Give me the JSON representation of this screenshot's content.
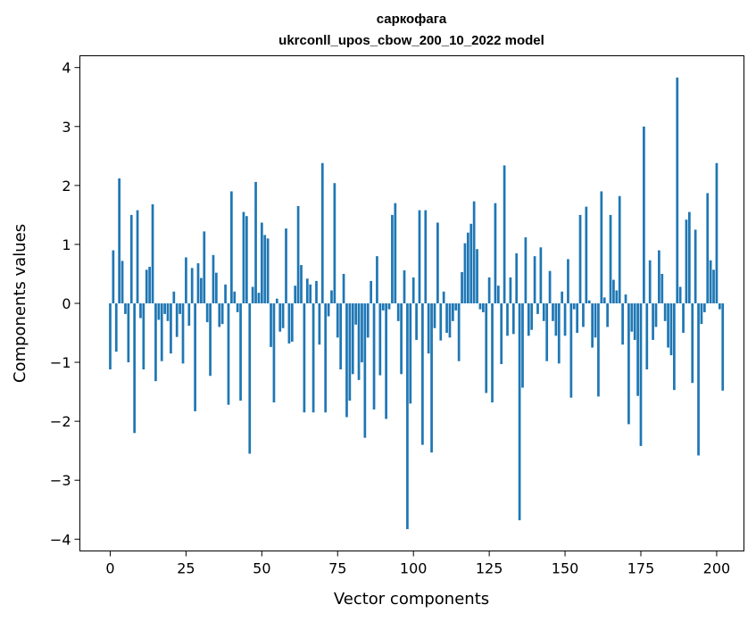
{
  "chart_data": {
    "type": "bar",
    "title_line1": "саркофага",
    "title_line2": "ukrconll_upos_cbow_200_10_2022 model",
    "xlabel": "Vector components",
    "ylabel": "Components values",
    "xlim": [
      -10,
      209
    ],
    "ylim": [
      -4.2,
      4.2
    ],
    "xticks": [
      0,
      25,
      50,
      75,
      100,
      125,
      150,
      175,
      200
    ],
    "yticks": [
      -4,
      -3,
      -2,
      -1,
      0,
      1,
      2,
      3,
      4
    ],
    "bar_color": "#1f77b4",
    "grid": false,
    "values": [
      -1.12,
      0.9,
      -0.82,
      2.12,
      0.72,
      -0.18,
      -1.0,
      1.5,
      -2.2,
      1.58,
      -0.25,
      -1.12,
      0.57,
      0.62,
      1.68,
      -1.32,
      -0.28,
      -0.98,
      -0.18,
      -0.3,
      -0.85,
      0.2,
      -0.57,
      -0.18,
      -1.02,
      0.78,
      -0.38,
      0.6,
      -1.83,
      0.68,
      0.43,
      1.22,
      -0.32,
      -1.23,
      0.82,
      0.52,
      -0.4,
      -0.35,
      0.32,
      -1.72,
      1.9,
      0.2,
      -0.15,
      -1.65,
      1.55,
      1.48,
      -2.55,
      0.28,
      2.06,
      0.18,
      1.37,
      1.16,
      1.1,
      -0.74,
      -1.68,
      0.08,
      -0.48,
      -0.42,
      1.27,
      -0.68,
      -0.65,
      0.3,
      1.65,
      0.65,
      -1.85,
      0.42,
      0.32,
      -1.85,
      0.38,
      -0.7,
      2.38,
      -1.85,
      -0.22,
      0.22,
      2.04,
      -0.58,
      -1.12,
      0.5,
      -1.93,
      -1.65,
      -1.2,
      -0.36,
      -1.3,
      -1.0,
      -2.28,
      -0.58,
      0.38,
      -1.8,
      0.8,
      -1.22,
      -0.12,
      -1.96,
      -0.1,
      1.5,
      1.7,
      -0.3,
      -1.2,
      0.56,
      -3.83,
      -1.7,
      0.44,
      -0.62,
      1.58,
      -2.4,
      1.58,
      -0.85,
      -2.53,
      -0.42,
      1.37,
      -0.63,
      0.2,
      -0.5,
      -0.58,
      -0.3,
      -0.12,
      -0.98,
      0.53,
      1.02,
      1.2,
      1.35,
      1.73,
      0.92,
      -0.1,
      -0.15,
      -1.52,
      0.44,
      -1.68,
      1.7,
      0.3,
      -1.03,
      2.34,
      -0.55,
      0.44,
      -0.52,
      0.85,
      -3.68,
      -1.43,
      1.12,
      -0.55,
      -0.45,
      0.8,
      -0.18,
      0.95,
      -0.3,
      -0.98,
      0.55,
      -0.3,
      -0.55,
      -1.02,
      0.2,
      -0.55,
      0.75,
      -1.6,
      -0.1,
      -0.5,
      1.5,
      -0.4,
      1.64,
      0.05,
      -0.75,
      -0.58,
      -1.58,
      1.9,
      0.1,
      -0.4,
      1.5,
      0.4,
      0.22,
      1.82,
      -0.7,
      0.15,
      -2.05,
      -0.48,
      -0.62,
      -1.57,
      -2.42,
      3.0,
      -1.12,
      0.73,
      -0.62,
      -0.4,
      0.9,
      0.5,
      -0.3,
      -0.75,
      -0.88,
      -1.47,
      3.83,
      0.28,
      -0.5,
      1.42,
      1.55,
      -1.35,
      1.25,
      -2.58,
      -0.35,
      -0.15,
      1.87,
      0.73,
      0.57,
      2.38,
      -0.1,
      -1.48
    ]
  }
}
